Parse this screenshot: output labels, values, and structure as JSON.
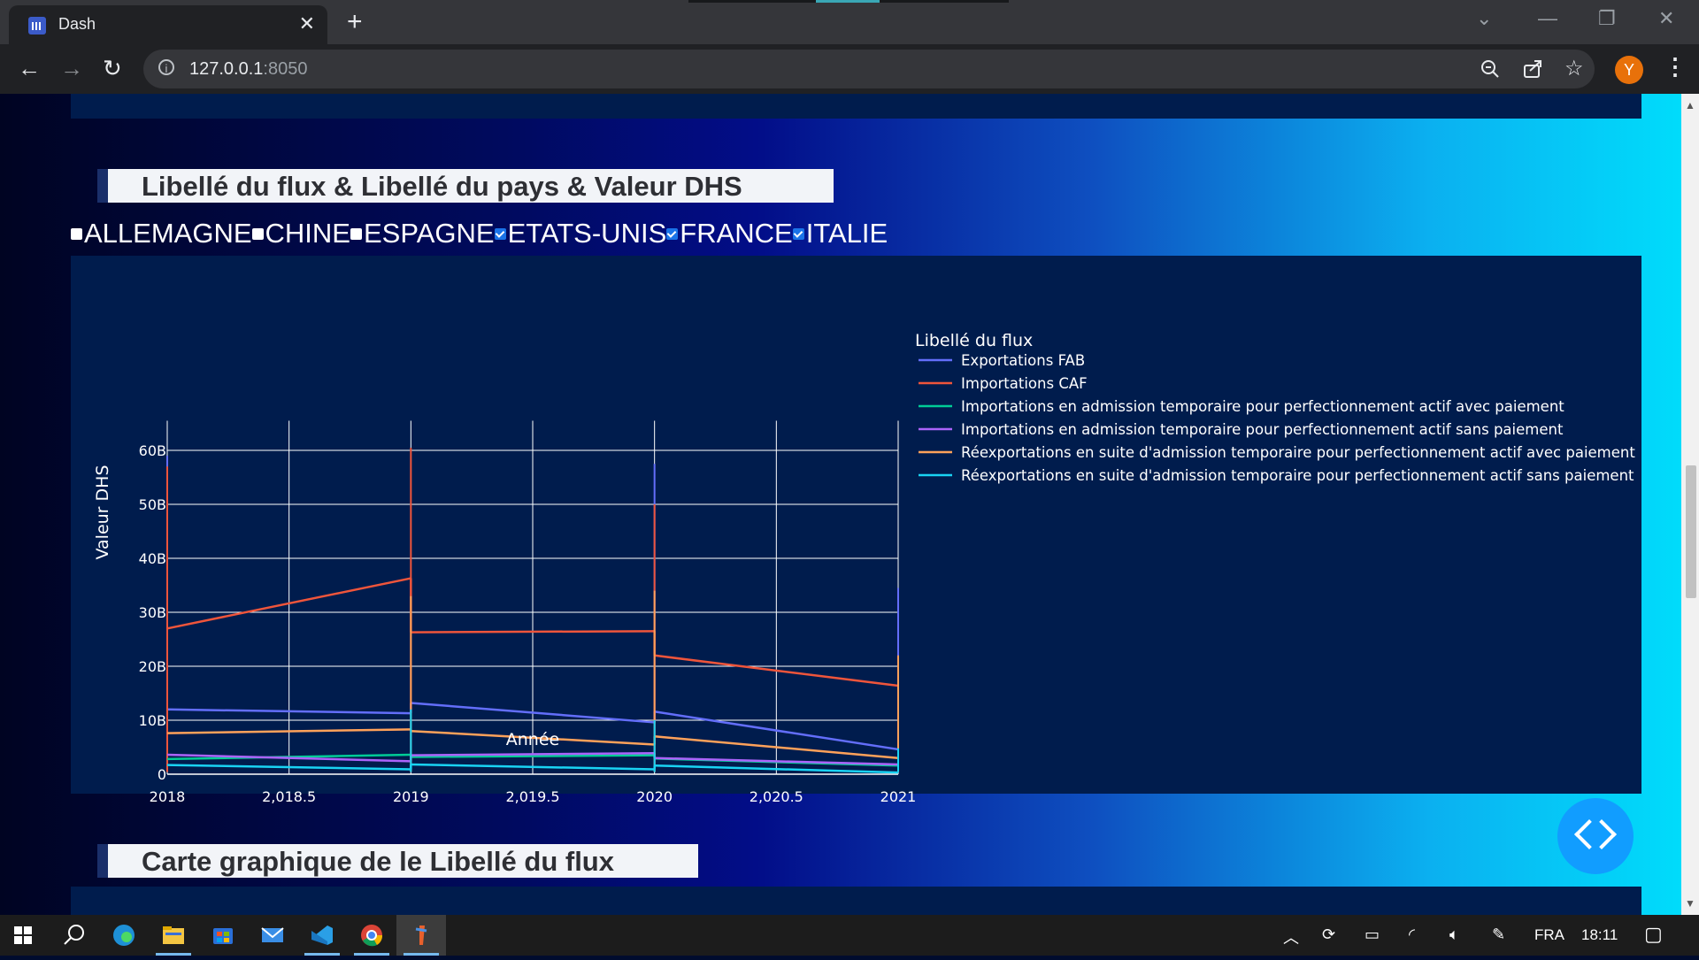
{
  "browser": {
    "tab_title": "Dash",
    "url_host": "127.0.0.1",
    "url_port": ":8050",
    "profile_initial": "Y",
    "icons": [
      "dash-favicon",
      "back-icon",
      "forward-icon",
      "reload-icon",
      "info-icon",
      "zoom-icon",
      "share-icon",
      "star-icon",
      "menu-icon"
    ]
  },
  "section1": {
    "title": "Libellé du flux & Libellé du pays & Valeur DHS",
    "countries": [
      {
        "label": "ALLEMAGNE",
        "checked": false
      },
      {
        "label": "CHINE",
        "checked": false
      },
      {
        "label": "ESPAGNE",
        "checked": false
      },
      {
        "label": "ETATS-UNIS",
        "checked": true
      },
      {
        "label": "FRANCE",
        "checked": true
      },
      {
        "label": "ITALIE",
        "checked": true
      }
    ]
  },
  "chart_data": {
    "type": "line",
    "x_tick_labels": [
      "2018",
      "2,018.5",
      "2019",
      "2,019.5",
      "2020",
      "2,020.5",
      "2021"
    ],
    "y_tick_labels": [
      "0",
      "10B",
      "20B",
      "30B",
      "40B",
      "50B",
      "60B"
    ],
    "xlabel": "Année",
    "ylabel": "Valeur DHS",
    "xlim": [
      2018,
      2021
    ],
    "ylim": [
      0,
      65
    ],
    "y_units": "billions DHS",
    "legend_title": "Libellé du flux",
    "legend_position": "right",
    "series": [
      {
        "name": "Exportations FAB",
        "color": "#636efa",
        "segments": [
          [
            [
              2018,
              12
            ],
            [
              2019,
              11.3
            ]
          ],
          [
            [
              2019,
              13.2
            ],
            [
              2020,
              9.6
            ]
          ],
          [
            [
              2020,
              11.6
            ],
            [
              2021,
              4.6
            ]
          ]
        ],
        "spikes": [
          [
            2018,
            59
          ],
          [
            2020,
            57.5
          ],
          [
            2021,
            34.5
          ]
        ]
      },
      {
        "name": "Importations CAF",
        "color": "#ef553b",
        "segments": [
          [
            [
              2018,
              27
            ],
            [
              2019,
              36.3
            ]
          ],
          [
            [
              2019,
              26.3
            ],
            [
              2020,
              26.5
            ]
          ],
          [
            [
              2020,
              22
            ],
            [
              2021,
              16.4
            ]
          ]
        ],
        "spikes": [
          [
            2018,
            57
          ],
          [
            2019,
            60.5
          ],
          [
            2020,
            50
          ],
          [
            2021,
            21.5
          ]
        ]
      },
      {
        "name": "Importations en admission temporaire pour perfectionnement actif  avec paiement",
        "color": "#00cc96",
        "segments": [
          [
            [
              2018,
              2.8
            ],
            [
              2019,
              3.6
            ]
          ],
          [
            [
              2019,
              3.2
            ],
            [
              2020,
              3.5
            ]
          ],
          [
            [
              2020,
              2.9
            ],
            [
              2021,
              1.6
            ]
          ]
        ],
        "spikes": []
      },
      {
        "name": "Importations en admission temporaire pour perfectionnement actif  sans paiement",
        "color": "#ab63fa",
        "segments": [
          [
            [
              2018,
              3.6
            ],
            [
              2019,
              2.4
            ]
          ],
          [
            [
              2019,
              3.5
            ],
            [
              2020,
              3.9
            ]
          ],
          [
            [
              2020,
              3.0
            ],
            [
              2021,
              1.8
            ]
          ]
        ],
        "spikes": []
      },
      {
        "name": "Réexportations en suite d'admission temporaire pour perfectionnement actif avec paiement",
        "color": "#ffa15a",
        "segments": [
          [
            [
              2018,
              7.6
            ],
            [
              2019,
              8.3
            ]
          ],
          [
            [
              2019,
              8.0
            ],
            [
              2020,
              5.5
            ]
          ],
          [
            [
              2020,
              7.0
            ],
            [
              2021,
              3.0
            ]
          ]
        ],
        "spikes": [
          [
            2019,
            33
          ],
          [
            2020,
            34
          ],
          [
            2021,
            22
          ]
        ]
      },
      {
        "name": "Réexportations en suite d'admission temporaire pour perfectionnement actif sans paiement",
        "color": "#19d3f3",
        "segments": [
          [
            [
              2018,
              1.7
            ],
            [
              2019,
              0.9
            ]
          ],
          [
            [
              2019,
              1.8
            ],
            [
              2020,
              0.9
            ]
          ],
          [
            [
              2020,
              1.6
            ],
            [
              2021,
              0.3
            ]
          ]
        ],
        "spikes": [
          [
            2019,
            12
          ],
          [
            2020,
            10
          ],
          [
            2021,
            4.8
          ]
        ]
      }
    ]
  },
  "section2": {
    "title": "Carte graphique de le Libellé du flux"
  },
  "taskbar": {
    "language": "FRA",
    "time": "18:11",
    "apps": [
      "windows-start",
      "search",
      "edge",
      "file-explorer",
      "store",
      "mail",
      "vscode",
      "chrome",
      "dash-app"
    ]
  }
}
